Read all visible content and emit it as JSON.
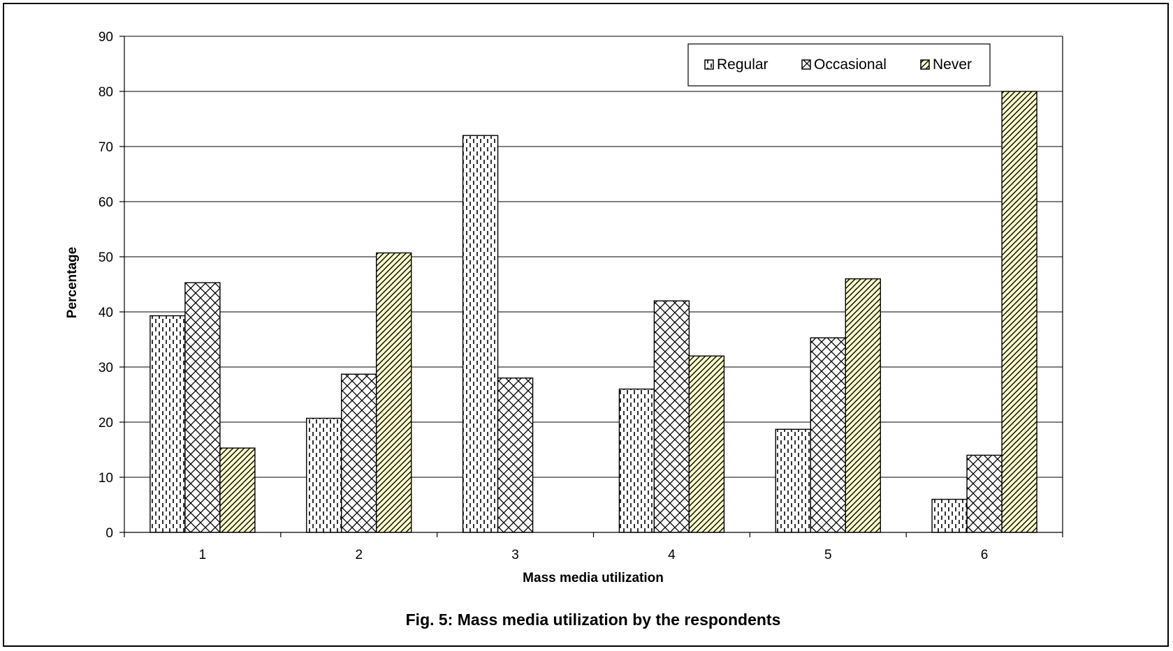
{
  "caption": "Fig. 5: Mass media utilization by the respondents",
  "chart_data": {
    "type": "bar",
    "title": "",
    "xlabel": "Mass media utilization",
    "ylabel": "Percentage",
    "categories": [
      "1",
      "2",
      "3",
      "4",
      "5",
      "6"
    ],
    "ylim": [
      0,
      90
    ],
    "yticks": [
      0,
      10,
      20,
      30,
      40,
      50,
      60,
      70,
      80,
      90
    ],
    "grid": "horizontal",
    "legend_position": "top-right",
    "series": [
      {
        "name": "Regular",
        "pattern": "dashed-vertical",
        "color": "#ffffff",
        "values": [
          39.3,
          20.7,
          72.0,
          26.0,
          18.7,
          6.0
        ]
      },
      {
        "name": "Occasional",
        "pattern": "crosshatch",
        "color": "#ffffff",
        "values": [
          45.3,
          28.7,
          28.0,
          42.0,
          35.3,
          14.0
        ]
      },
      {
        "name": "Never",
        "pattern": "diagonal",
        "color": "#ffffcc",
        "values": [
          15.3,
          50.7,
          0,
          32.0,
          46.0,
          80.0
        ]
      }
    ]
  }
}
